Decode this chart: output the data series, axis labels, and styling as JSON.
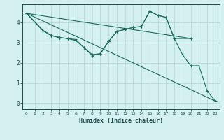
{
  "xlabel": "Humidex (Indice chaleur)",
  "bg_color": "#d4f0f0",
  "grid_color": "#b8d8d8",
  "line_color": "#1a6b5a",
  "xlim": [
    -0.5,
    23.5
  ],
  "ylim": [
    -0.3,
    4.9
  ],
  "yticks": [
    0,
    1,
    2,
    3,
    4
  ],
  "xticks": [
    0,
    1,
    2,
    3,
    4,
    5,
    6,
    7,
    8,
    9,
    10,
    11,
    12,
    13,
    14,
    15,
    16,
    17,
    18,
    19,
    20,
    21,
    22,
    23
  ],
  "lines": [
    {
      "x": [
        0,
        23
      ],
      "y": [
        4.45,
        0.1
      ],
      "marker": false,
      "lw": 0.8
    },
    {
      "x": [
        0,
        20
      ],
      "y": [
        4.45,
        3.2
      ],
      "marker": false,
      "lw": 0.8
    },
    {
      "x": [
        0,
        2,
        3,
        4
      ],
      "y": [
        4.45,
        3.6,
        3.35,
        3.25
      ],
      "marker": true,
      "lw": 0.8
    },
    {
      "x": [
        0,
        2,
        3,
        4,
        5,
        6,
        7,
        8,
        9,
        10,
        11,
        12,
        13,
        14,
        15,
        16,
        17,
        18,
        20
      ],
      "y": [
        4.45,
        3.6,
        3.35,
        3.25,
        3.2,
        3.15,
        2.75,
        2.4,
        2.45,
        3.05,
        3.55,
        3.65,
        3.75,
        3.8,
        4.55,
        4.35,
        4.25,
        3.2,
        3.2
      ],
      "marker": true,
      "lw": 0.8
    },
    {
      "x": [
        0,
        2,
        3,
        4,
        5,
        6,
        7,
        8,
        9,
        10,
        11,
        12,
        13,
        14,
        15,
        16,
        17,
        18,
        19,
        20,
        21,
        22,
        23
      ],
      "y": [
        4.45,
        3.6,
        3.35,
        3.25,
        3.2,
        3.1,
        2.75,
        2.35,
        2.45,
        3.05,
        3.55,
        3.65,
        3.75,
        3.8,
        4.55,
        4.35,
        4.25,
        3.2,
        2.4,
        1.85,
        1.85,
        0.6,
        0.1
      ],
      "marker": true,
      "lw": 0.8
    }
  ]
}
